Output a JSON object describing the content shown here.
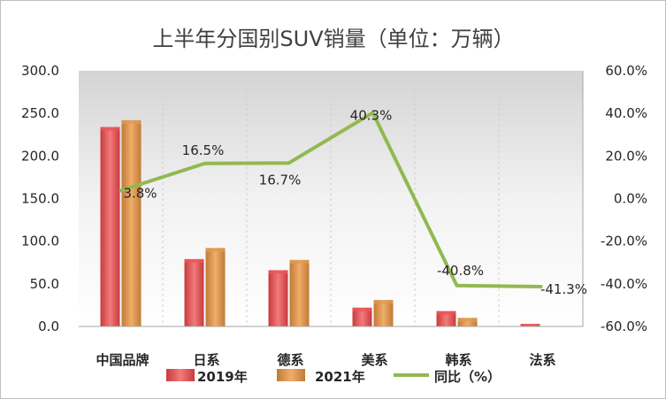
{
  "chart_data": {
    "type": "bar",
    "title": "上半年分国别SUV销量（单位：万辆）",
    "categories": [
      "中国品牌",
      "日系",
      "德系",
      "美系",
      "韩系",
      "法系"
    ],
    "series": [
      {
        "name": "2019年",
        "type": "bar",
        "axis": "left",
        "values": [
          234.0,
          79.0,
          66.0,
          22.0,
          18.0,
          3.0
        ]
      },
      {
        "name": "2021年",
        "type": "bar",
        "axis": "left",
        "values": [
          242.0,
          92.0,
          78.0,
          31.0,
          10.0,
          0.0
        ]
      },
      {
        "name": "同比（%）",
        "type": "line",
        "axis": "right",
        "values": [
          3.8,
          16.5,
          16.7,
          40.3,
          -40.8,
          -41.3
        ]
      }
    ],
    "data_labels": [
      "3.8%",
      "16.5%",
      "16.7%",
      "40.3%",
      "-40.8%",
      "-41.3%"
    ],
    "y_left": {
      "lim": [
        0,
        300
      ],
      "ticks": [
        "0.0",
        "50.0",
        "100.0",
        "150.0",
        "200.0",
        "250.0",
        "300.0"
      ]
    },
    "y_right": {
      "lim": [
        -60,
        60
      ],
      "ticks": [
        "-60.0%",
        "-40.0%",
        "-20.0%",
        "0.0%",
        "20.0%",
        "40.0%",
        "60.0%"
      ]
    },
    "legend_position": "bottom",
    "grid": "vertical-dashed",
    "colors": {
      "bar_2019": "#e8575a",
      "bar_2021": "#e09a52",
      "line": "#92b850",
      "plot_bg": "#efefef"
    }
  }
}
